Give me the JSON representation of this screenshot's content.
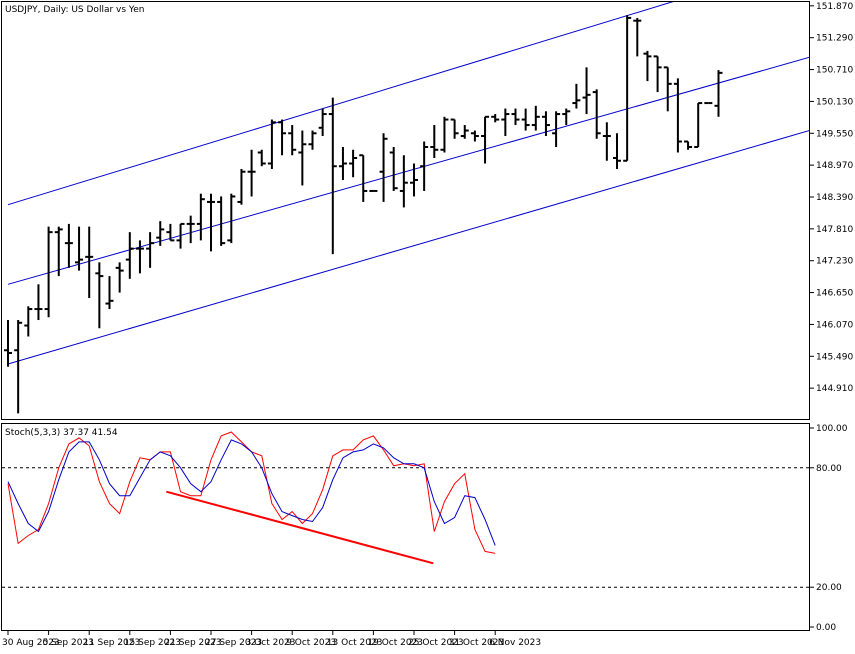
{
  "chart_data": [
    {
      "type": "ohlc",
      "title": "USDJPY, Daily:  US Dollar vs Yen",
      "ylim": [
        144.33,
        151.94
      ],
      "y_ticks": [
        "151.870",
        "151.290",
        "150.710",
        "150.130",
        "149.550",
        "148.970",
        "148.390",
        "147.810",
        "147.230",
        "146.650",
        "146.070",
        "145.490",
        "144.910"
      ],
      "y_tick_values": [
        151.87,
        151.29,
        150.71,
        150.13,
        149.55,
        148.97,
        148.39,
        147.81,
        147.23,
        146.65,
        146.07,
        145.49,
        144.91
      ],
      "bar_color": "#000000",
      "channel_color": "#0000cc",
      "bars": [
        {
          "o": 145.6,
          "h": 146.15,
          "l": 145.3,
          "c": 145.55
        },
        {
          "o": 145.6,
          "h": 146.15,
          "l": 144.45,
          "c": 146.1
        },
        {
          "o": 146.05,
          "h": 146.4,
          "l": 145.85,
          "c": 146.35
        },
        {
          "o": 146.35,
          "h": 146.8,
          "l": 146.15,
          "c": 146.35
        },
        {
          "o": 146.35,
          "h": 147.85,
          "l": 146.2,
          "c": 147.75
        },
        {
          "o": 147.75,
          "h": 147.85,
          "l": 146.95,
          "c": 147.8
        },
        {
          "o": 147.55,
          "h": 147.9,
          "l": 147.1,
          "c": 147.55
        },
        {
          "o": 147.2,
          "h": 147.85,
          "l": 147.05,
          "c": 147.25
        },
        {
          "o": 147.3,
          "h": 147.85,
          "l": 146.55,
          "c": 147.3
        },
        {
          "o": 147.0,
          "h": 147.2,
          "l": 146.0,
          "c": 146.95
        },
        {
          "o": 146.45,
          "h": 146.95,
          "l": 146.35,
          "c": 146.5
        },
        {
          "o": 147.1,
          "h": 147.2,
          "l": 146.65,
          "c": 147.05
        },
        {
          "o": 147.25,
          "h": 147.75,
          "l": 146.9,
          "c": 147.45
        },
        {
          "o": 147.45,
          "h": 147.6,
          "l": 147.0,
          "c": 147.45
        },
        {
          "o": 147.45,
          "h": 147.75,
          "l": 147.1,
          "c": 147.55
        },
        {
          "o": 147.65,
          "h": 147.95,
          "l": 147.5,
          "c": 147.8
        },
        {
          "o": 147.75,
          "h": 147.9,
          "l": 147.6,
          "c": 147.6
        },
        {
          "o": 147.6,
          "h": 147.9,
          "l": 147.45,
          "c": 147.9
        },
        {
          "o": 147.9,
          "h": 148.05,
          "l": 147.55,
          "c": 147.9
        },
        {
          "o": 147.9,
          "h": 148.45,
          "l": 147.6,
          "c": 148.35
        },
        {
          "o": 148.3,
          "h": 148.45,
          "l": 147.4,
          "c": 148.3
        },
        {
          "o": 148.3,
          "h": 148.4,
          "l": 147.5,
          "c": 147.55
        },
        {
          "o": 147.6,
          "h": 148.45,
          "l": 147.55,
          "c": 148.4
        },
        {
          "o": 148.3,
          "h": 148.9,
          "l": 148.25,
          "c": 148.85
        },
        {
          "o": 148.85,
          "h": 149.25,
          "l": 148.4,
          "c": 148.85
        },
        {
          "o": 149.2,
          "h": 149.25,
          "l": 148.95,
          "c": 149.0
        },
        {
          "o": 149.0,
          "h": 149.8,
          "l": 148.9,
          "c": 149.75
        },
        {
          "o": 149.75,
          "h": 149.8,
          "l": 149.15,
          "c": 149.55
        },
        {
          "o": 149.55,
          "h": 149.7,
          "l": 149.15,
          "c": 149.25
        },
        {
          "o": 149.2,
          "h": 149.6,
          "l": 148.6,
          "c": 149.35
        },
        {
          "o": 149.35,
          "h": 149.6,
          "l": 149.25,
          "c": 149.55
        },
        {
          "o": 149.65,
          "h": 150.0,
          "l": 149.5,
          "c": 149.9
        },
        {
          "o": 149.9,
          "h": 150.2,
          "l": 147.35,
          "c": 148.95
        },
        {
          "o": 148.95,
          "h": 149.3,
          "l": 148.7,
          "c": 149.0
        },
        {
          "o": 149.0,
          "h": 149.25,
          "l": 148.75,
          "c": 149.1
        },
        {
          "o": 149.15,
          "h": 149.15,
          "l": 148.3,
          "c": 148.5
        },
        {
          "o": 148.5,
          "h": 148.5,
          "l": 148.5,
          "c": 148.5
        },
        {
          "o": 148.85,
          "h": 149.55,
          "l": 148.3,
          "c": 149.45
        },
        {
          "o": 149.2,
          "h": 149.3,
          "l": 148.5,
          "c": 148.55
        },
        {
          "o": 148.5,
          "h": 149.15,
          "l": 148.2,
          "c": 148.65
        },
        {
          "o": 148.65,
          "h": 149.0,
          "l": 148.4,
          "c": 148.7
        },
        {
          "o": 148.95,
          "h": 149.4,
          "l": 148.5,
          "c": 149.3
        },
        {
          "o": 149.3,
          "h": 149.7,
          "l": 149.1,
          "c": 149.25
        },
        {
          "o": 149.25,
          "h": 149.85,
          "l": 149.2,
          "c": 149.8
        },
        {
          "o": 149.8,
          "h": 149.8,
          "l": 149.45,
          "c": 149.55
        },
        {
          "o": 149.5,
          "h": 149.7,
          "l": 149.45,
          "c": 149.6
        },
        {
          "o": 149.55,
          "h": 149.6,
          "l": 149.4,
          "c": 149.5
        },
        {
          "o": 149.5,
          "h": 149.85,
          "l": 149.0,
          "c": 149.85
        },
        {
          "o": 149.85,
          "h": 149.9,
          "l": 149.75,
          "c": 149.8
        },
        {
          "o": 149.8,
          "h": 150.0,
          "l": 149.5,
          "c": 149.9
        },
        {
          "o": 149.9,
          "h": 150.0,
          "l": 149.7,
          "c": 149.8
        },
        {
          "o": 149.8,
          "h": 150.0,
          "l": 149.6,
          "c": 149.7
        },
        {
          "o": 149.7,
          "h": 150.05,
          "l": 149.6,
          "c": 149.85
        },
        {
          "o": 149.85,
          "h": 149.95,
          "l": 149.5,
          "c": 149.7
        },
        {
          "o": 149.55,
          "h": 149.95,
          "l": 149.3,
          "c": 149.9
        },
        {
          "o": 149.9,
          "h": 150.0,
          "l": 149.7,
          "c": 149.95
        },
        {
          "o": 150.1,
          "h": 150.45,
          "l": 150.0,
          "c": 150.15
        },
        {
          "o": 150.2,
          "h": 150.75,
          "l": 149.9,
          "c": 150.25
        },
        {
          "o": 150.3,
          "h": 150.35,
          "l": 149.45,
          "c": 149.55
        },
        {
          "o": 149.5,
          "h": 149.75,
          "l": 149.05,
          "c": 149.5
        },
        {
          "o": 149.1,
          "h": 149.55,
          "l": 148.9,
          "c": 149.05
        },
        {
          "o": 149.05,
          "h": 151.7,
          "l": 149.05,
          "c": 151.65
        },
        {
          "o": 151.6,
          "h": 151.65,
          "l": 150.95,
          "c": 151.6
        },
        {
          "o": 151.0,
          "h": 151.05,
          "l": 150.5,
          "c": 150.95
        },
        {
          "o": 150.95,
          "h": 150.95,
          "l": 150.3,
          "c": 150.75
        },
        {
          "o": 150.75,
          "h": 150.75,
          "l": 149.95,
          "c": 150.45
        },
        {
          "o": 150.45,
          "h": 150.55,
          "l": 149.2,
          "c": 149.4
        },
        {
          "o": 149.4,
          "h": 149.4,
          "l": 149.25,
          "c": 149.3
        },
        {
          "o": 149.3,
          "h": 150.1,
          "l": 149.3,
          "c": 150.1
        },
        {
          "o": 150.1,
          "h": 150.1,
          "l": 150.1,
          "c": 150.1
        },
        {
          "o": 150.05,
          "h": 150.7,
          "l": 149.85,
          "c": 150.65
        }
      ],
      "channel_lines": [
        {
          "name": "upper",
          "points": [
            [
              0,
              148.25
            ],
            [
              70.0,
              152.2
            ]
          ]
        },
        {
          "name": "middle",
          "points": [
            [
              0,
              146.8
            ],
            [
              80.8,
              151.03
            ]
          ]
        },
        {
          "name": "lower",
          "points": [
            [
              0,
              145.35
            ],
            [
              80.8,
              149.7
            ]
          ]
        }
      ]
    },
    {
      "type": "line",
      "title": "Stoch(5,3,3) 37.37 41.54",
      "ylim": [
        -2,
        102
      ],
      "y_ticks": [
        "100.00",
        "80.00",
        "20.00",
        "0.00"
      ],
      "y_tick_values": [
        100,
        80,
        20,
        0
      ],
      "levels": [
        80,
        20
      ],
      "level_style": "dashed",
      "series": [
        {
          "color": "#ff0000",
          "values": [
            72,
            42,
            46,
            49,
            62,
            80,
            92,
            95,
            91,
            73,
            62,
            57,
            73,
            85,
            84,
            88,
            88,
            68,
            66,
            66,
            84,
            96,
            98,
            93,
            88,
            86,
            62,
            54,
            58,
            52,
            57,
            69,
            86,
            89,
            89,
            94,
            96,
            89,
            81,
            82,
            81,
            82,
            48,
            63,
            72,
            77,
            49,
            38,
            37
          ]
        },
        {
          "color": "#0000cc",
          "values": [
            73,
            62,
            52,
            48,
            58,
            74,
            88,
            93,
            93,
            84,
            72,
            66,
            66,
            75,
            84,
            88,
            86,
            80,
            72,
            68,
            73,
            84,
            94,
            92,
            88,
            80,
            67,
            58,
            56,
            54,
            53,
            60,
            74,
            85,
            88,
            89,
            92,
            90,
            85,
            82,
            82,
            80,
            63,
            52,
            55,
            66,
            65,
            54,
            41
          ]
        }
      ],
      "trendline": {
        "color": "#ff0000",
        "start": [
          15.6,
          68
        ],
        "end": [
          41.9,
          32
        ]
      },
      "x_ticks": [
        {
          "label": "30 Aug 2023",
          "i": 0
        },
        {
          "label": "5 Sep 2023",
          "i": 4
        },
        {
          "label": "11 Sep 2023",
          "i": 8
        },
        {
          "label": "15 Sep 2023",
          "i": 12
        },
        {
          "label": "21 Sep 2023",
          "i": 16
        },
        {
          "label": "27 Sep 2023",
          "i": 20
        },
        {
          "label": "3 Oct 2023",
          "i": 24
        },
        {
          "label": "9 Oct 2023",
          "i": 28
        },
        {
          "label": "13 Oct 2023",
          "i": 32
        },
        {
          "label": "19 Oct 2023",
          "i": 36
        },
        {
          "label": "25 Oct 2023",
          "i": 40
        },
        {
          "label": "31 Oct 2023",
          "i": 44
        },
        {
          "label": "6 Nov 2023",
          "i": 48
        }
      ]
    }
  ]
}
